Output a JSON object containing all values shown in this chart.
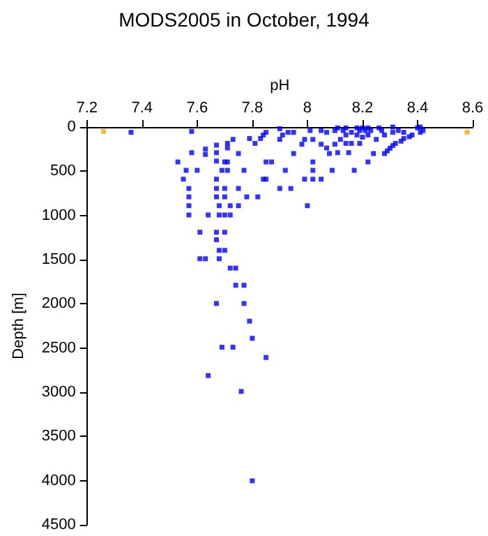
{
  "chart_data": {
    "type": "scatter",
    "title": "MODS2005 in October, 1994",
    "xlabel": "pH",
    "ylabel": "Depth [m]",
    "xlim": [
      7.2,
      8.6
    ],
    "xticks": [
      7.2,
      7.4,
      7.6,
      7.8,
      8,
      8.2,
      8.4,
      8.6
    ],
    "ylim": [
      4500,
      0
    ],
    "yticks": [
      0,
      500,
      1000,
      1500,
      2000,
      2500,
      3000,
      3500,
      4000,
      4500
    ],
    "grid": false,
    "marker": "square",
    "series": [
      {
        "color": "#0000ff",
        "x": [
          7.36,
          7.58,
          7.58,
          7.53,
          7.56,
          7.6,
          7.55,
          7.57,
          7.57,
          7.57,
          7.57,
          7.61,
          7.63,
          7.63,
          7.67,
          7.67,
          7.67,
          7.69,
          7.71,
          7.67,
          7.67,
          7.67,
          7.7,
          7.68,
          7.72,
          7.64,
          7.68,
          7.7,
          7.72,
          7.67,
          7.7,
          7.71,
          7.71,
          7.73,
          7.75,
          7.7,
          7.71,
          7.77,
          7.7,
          7.75,
          7.75,
          7.78,
          7.82,
          7.79,
          7.81,
          7.83,
          7.84,
          7.85,
          7.85,
          7.87,
          7.84,
          7.85,
          7.9,
          7.94,
          7.92,
          7.9,
          7.91,
          7.93,
          7.9,
          7.95,
          7.98,
          7.99,
          7.95,
          7.99,
          8.02,
          8.05,
          8.0,
          8.02,
          8.02,
          8.01,
          8.05,
          8.07,
          8.02,
          8.05,
          8.07,
          8.1,
          8.08,
          8.09,
          8.1,
          8.11,
          8.13,
          8.14,
          8.16,
          8.14,
          8.12,
          8.14,
          8.16,
          8.11,
          8.15,
          8.17,
          8.18,
          8.2,
          8.22,
          8.19,
          8.21,
          8.23,
          8.18,
          8.2,
          8.22,
          8.19,
          8.22,
          8.26,
          8.27,
          8.31,
          8.28,
          8.25,
          8.31,
          8.33,
          8.35,
          8.24,
          8.28,
          8.29,
          8.3,
          8.31,
          8.32,
          8.34,
          8.35,
          8.37,
          8.38,
          8.4,
          8.41,
          8.42,
          8.41,
          7.67,
          7.68,
          7.7,
          7.61,
          7.63,
          7.68,
          7.72,
          7.74,
          7.74,
          7.77,
          7.67,
          7.77,
          7.79,
          7.8,
          7.69,
          7.73,
          7.85,
          7.64,
          7.76,
          7.8
        ],
        "values": [
          60,
          50,
          290,
          395,
          490,
          490,
          590,
          695,
          790,
          890,
          995,
          1190,
          250,
          310,
          205,
          290,
          385,
          490,
          490,
          590,
          695,
          790,
          790,
          890,
          890,
          995,
          995,
          995,
          995,
          1190,
          1190,
          185,
          237,
          140,
          300,
          395,
          395,
          490,
          695,
          695,
          890,
          790,
          790,
          130,
          185,
          130,
          90,
          60,
          395,
          395,
          590,
          590,
          695,
          695,
          490,
          140,
          90,
          60,
          20,
          60,
          195,
          140,
          300,
          590,
          590,
          590,
          890,
          490,
          395,
          40,
          40,
          60,
          140,
          195,
          237,
          195,
          300,
          490,
          40,
          10,
          40,
          10,
          60,
          90,
          140,
          185,
          185,
          290,
          290,
          490,
          10,
          10,
          10,
          40,
          40,
          40,
          90,
          115,
          90,
          185,
          395,
          10,
          40,
          60,
          90,
          140,
          0,
          40,
          60,
          300,
          300,
          270,
          240,
          210,
          185,
          160,
          130,
          110,
          90,
          10,
          0,
          40,
          60,
          1275,
          1395,
          1395,
          1490,
          1490,
          1490,
          1596,
          1596,
          1790,
          1790,
          1996,
          1996,
          2196,
          2390,
          2491,
          2491,
          2607,
          2812,
          2991,
          4002
        ]
      },
      {
        "color": "#ffa500",
        "x": [
          7.26,
          8.58
        ],
        "values": [
          50,
          58
        ]
      }
    ]
  }
}
